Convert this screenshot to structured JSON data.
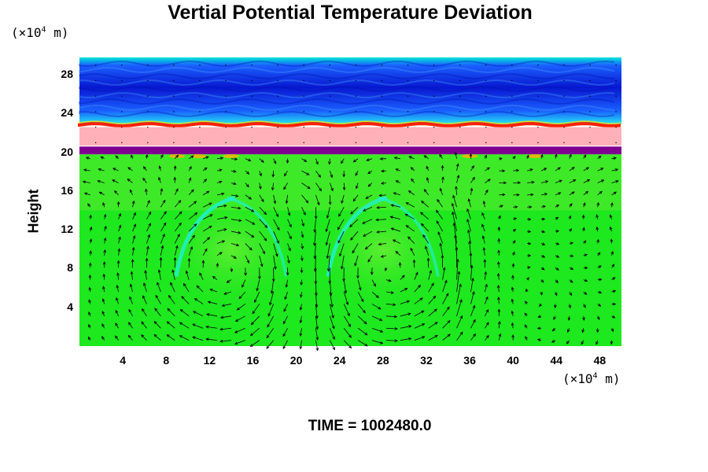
{
  "title": "Vertial Potential Temperature Deviation",
  "y_unit": {
    "prefix": "(×10",
    "exp": "4",
    "suffix": " m)"
  },
  "x_unit": {
    "prefix": "(×10",
    "exp": "4",
    "suffix": " m)"
  },
  "ylabel": "Height",
  "time_label": "TIME = 1002480.0",
  "chart_data": {
    "type": "heatmap",
    "title": "Vertial Potential Temperature Deviation",
    "xlabel": "",
    "ylabel": "Height",
    "x_unit": "×10^4 m",
    "y_unit": "×10^4 m",
    "xlim": [
      0,
      50
    ],
    "ylim": [
      0,
      29.8
    ],
    "x_ticks": [
      4,
      8,
      12,
      16,
      20,
      24,
      28,
      32,
      36,
      40,
      44,
      48
    ],
    "y_ticks": [
      4,
      8,
      12,
      16,
      20,
      24,
      28
    ],
    "overlay": "wind vectors",
    "colors": {
      "background_field": "#1ee81e",
      "lower_field_light": "#66ee33",
      "cyan_band": "#22f0e0",
      "upper_blue": "#1040ff",
      "upper_dark_blue": "#0018d0",
      "red_line": "#ff2000",
      "pink_band": "#ffb0b8",
      "purple_band": "#800090"
    },
    "bands": [
      {
        "name": "upper region",
        "y_from": 24.5,
        "y_to": 29.8,
        "color": "#1040ff"
      },
      {
        "name": "red boundary",
        "y_from": 22.6,
        "y_to": 23.0,
        "color": "#ff2000"
      },
      {
        "name": "pink band",
        "y_from": 20.7,
        "y_to": 22.6,
        "color": "#ffb0b8"
      },
      {
        "name": "purple band",
        "y_from": 19.8,
        "y_to": 20.6,
        "color": "#800090"
      },
      {
        "name": "lower region",
        "y_from": 0,
        "y_to": 19.8,
        "color": "#1ee81e"
      }
    ],
    "circulation_cells": [
      {
        "center_x": 14,
        "center_y": 8,
        "direction": "clockwise"
      },
      {
        "center_x": 28,
        "center_y": 8,
        "direction": "counterclockwise"
      }
    ],
    "updrafts_at_x": [
      20,
      35
    ]
  }
}
